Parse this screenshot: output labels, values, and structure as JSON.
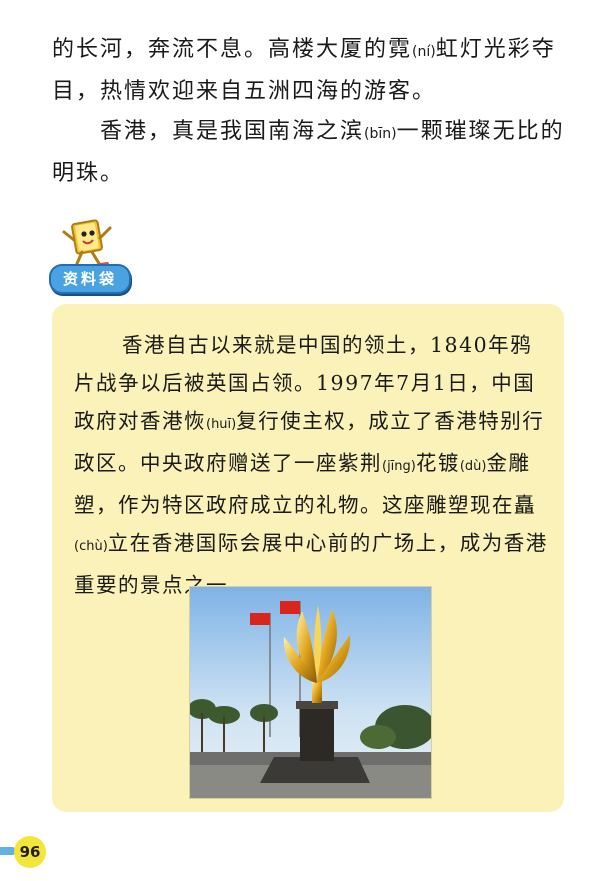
{
  "main": {
    "p1": {
      "t1": "的长河，奔流不息。高楼大厦的霓",
      "py1": "(ní)",
      "t2": "虹灯光彩夺目，热情欢迎来自五洲四海的游客。"
    },
    "p2": {
      "t1": "香港，真是我国南海之滨",
      "py1": "(bīn)",
      "t2": "一颗璀璨无比的明珠。"
    }
  },
  "infobox": {
    "tag": "资料袋",
    "t1": "香港自古以来就是中国的领土，1840年鸦片战争以后被英国占领。1997年7月1日，中国政府对香港恢",
    "py1": "(huī)",
    "t2": "复行使主权，成立了香港特别行政区。中央政府赠送了一座紫荆",
    "py2": "(jīng)",
    "t3": "花镀",
    "py3": "(dù)",
    "t4": "金雕塑，作为特区政府成立的礼物。这座雕塑现在矗",
    "py4": "(chù)",
    "t5": "立在香港国际会展中心前的广场上，成为香港重要的景点之一。"
  },
  "page_number": "96",
  "colors": {
    "box_bg": "#faf2b8",
    "tag_bg": "#4aa3e0",
    "page_badge": "#f3e63a"
  },
  "icons": {
    "mascot": "book-mascot-icon"
  }
}
